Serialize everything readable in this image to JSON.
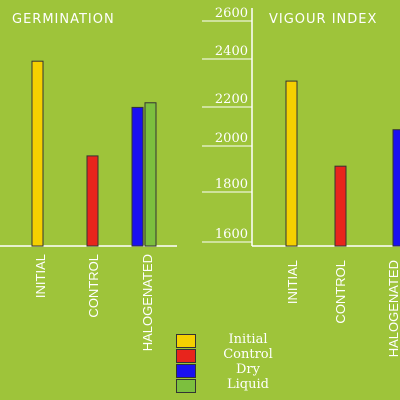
{
  "chart_data": [
    {
      "type": "bar",
      "title": "GERMINATION",
      "categories": [
        "INITIAL",
        "CONTROL",
        "HALOGENATED"
      ],
      "series": [
        {
          "name": "Initial",
          "values": [
            null,
            null,
            null
          ]
        },
        {
          "name": "Control",
          "values": [
            null,
            null,
            null
          ]
        },
        {
          "name": "Dry",
          "values": [
            null,
            null,
            null
          ]
        },
        {
          "name": "Liquid",
          "values": [
            null,
            null,
            null
          ]
        }
      ],
      "bars": [
        {
          "series": "Initial",
          "category": "INITIAL",
          "level": 0.8
        },
        {
          "series": "Control",
          "category": "CONTROL",
          "level": 0.39
        },
        {
          "series": "Dry",
          "category": "HALOGENATED",
          "level": 0.6
        },
        {
          "series": "Liquid",
          "category": "HALOGENATED",
          "level": 0.62
        }
      ],
      "ylim_note": "no y-axis shown"
    },
    {
      "type": "bar",
      "title": "VIGOUR INDEX",
      "categories": [
        "INITIAL",
        "CONTROL",
        "HALOGENATED"
      ],
      "yticks": [
        "2600",
        "2400",
        "2200",
        "2000",
        "1800",
        "1600"
      ],
      "ylim": [
        1600,
        2600
      ],
      "bars": [
        {
          "series": "Initial",
          "category": "INITIAL",
          "value": 2310
        },
        {
          "series": "Control",
          "category": "CONTROL",
          "value": 1925
        },
        {
          "series": "Dry",
          "category": "HALOGENATED",
          "value": 2090
        }
      ]
    }
  ],
  "legend": [
    {
      "label": "Initial",
      "color": "#f5d000"
    },
    {
      "label": "Control",
      "color": "#e8241c"
    },
    {
      "label": "Dry",
      "color": "#1a10f0"
    },
    {
      "label": "Liquid",
      "color": "#7cbf3e"
    }
  ],
  "colors": {
    "background": "#9ec43a",
    "axis": "#ffffff"
  }
}
